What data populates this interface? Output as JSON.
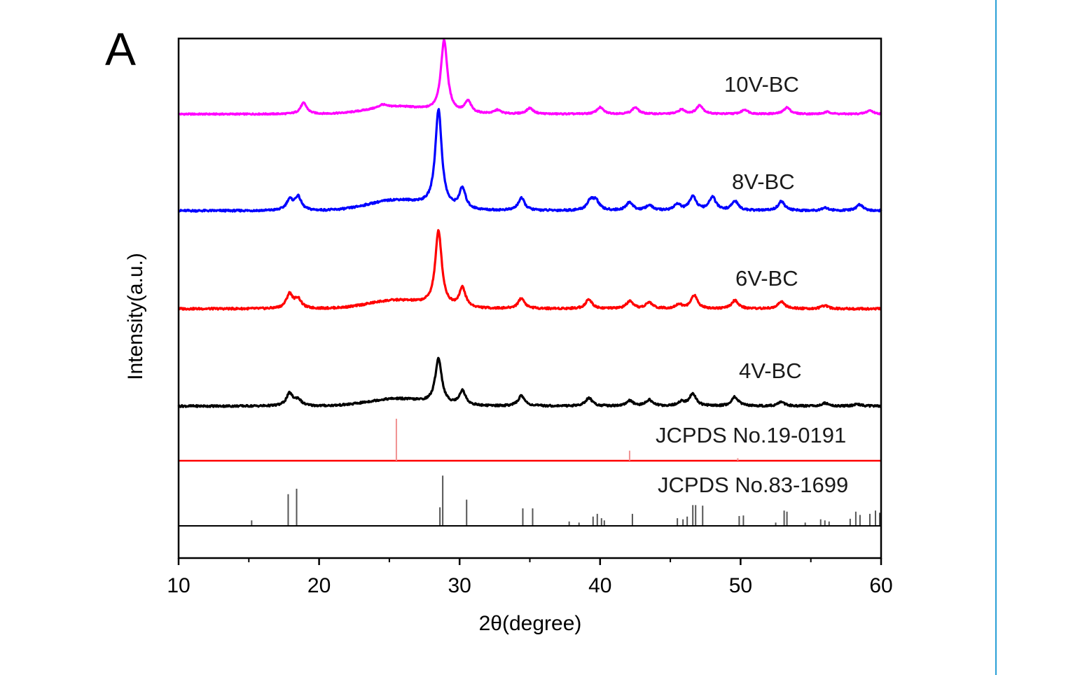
{
  "chart_data": {
    "type": "line",
    "panel_label": "A",
    "xlabel": "2θ(degree)",
    "ylabel": "Intensity(a.u.)",
    "xlim": [
      10,
      60
    ],
    "x_ticks": [
      10,
      20,
      30,
      40,
      50,
      60
    ],
    "y_ticks_shown": false,
    "grid": false,
    "legend": "none (series labelled inline on the right)",
    "series": [
      {
        "name": "10V-BC",
        "color": "#ff00ff",
        "baseline": 0.13,
        "hump": {
          "center": 25.5,
          "width": 2.8,
          "height": 0.1
        },
        "peaks": [
          [
            18.9,
            0.15
          ],
          [
            24.5,
            0.04
          ],
          [
            28.9,
            0.98
          ],
          [
            30.6,
            0.16
          ],
          [
            32.7,
            0.05
          ],
          [
            35.0,
            0.08
          ],
          [
            40.0,
            0.09
          ],
          [
            42.5,
            0.09
          ],
          [
            45.8,
            0.06
          ],
          [
            47.1,
            0.12
          ],
          [
            50.3,
            0.06
          ],
          [
            53.3,
            0.09
          ],
          [
            56.2,
            0.03
          ],
          [
            59.2,
            0.05
          ]
        ]
      },
      {
        "name": "8V-BC",
        "color": "#0000ff",
        "baseline": 0.13,
        "hump": {
          "center": 25.5,
          "width": 2.8,
          "height": 0.1
        },
        "peaks": [
          [
            17.9,
            0.1
          ],
          [
            18.5,
            0.13
          ],
          [
            28.5,
            0.95
          ],
          [
            30.2,
            0.2
          ],
          [
            34.4,
            0.12
          ],
          [
            39.3,
            0.09
          ],
          [
            39.7,
            0.09
          ],
          [
            42.1,
            0.08
          ],
          [
            43.5,
            0.05
          ],
          [
            45.5,
            0.06
          ],
          [
            46.6,
            0.14
          ],
          [
            48.0,
            0.13
          ],
          [
            49.6,
            0.09
          ],
          [
            52.9,
            0.09
          ],
          [
            56.0,
            0.03
          ],
          [
            58.5,
            0.06
          ]
        ]
      },
      {
        "name": "6V-BC",
        "color": "#ff0000",
        "baseline": 0.13,
        "hump": {
          "center": 25.5,
          "width": 2.8,
          "height": 0.08
        },
        "peaks": [
          [
            17.9,
            0.14
          ],
          [
            18.5,
            0.09
          ],
          [
            28.5,
            0.73
          ],
          [
            30.2,
            0.19
          ],
          [
            34.4,
            0.1
          ],
          [
            39.2,
            0.09
          ],
          [
            42.1,
            0.07
          ],
          [
            43.5,
            0.06
          ],
          [
            45.6,
            0.04
          ],
          [
            46.7,
            0.13
          ],
          [
            49.6,
            0.08
          ],
          [
            52.9,
            0.07
          ],
          [
            56.0,
            0.03
          ]
        ]
      },
      {
        "name": "4V-BC",
        "color": "#000000",
        "baseline": 0.13,
        "hump": {
          "center": 25.5,
          "width": 2.8,
          "height": 0.07
        },
        "peaks": [
          [
            17.9,
            0.12
          ],
          [
            18.5,
            0.06
          ],
          [
            28.5,
            0.44
          ],
          [
            30.2,
            0.14
          ],
          [
            34.4,
            0.1
          ],
          [
            39.2,
            0.08
          ],
          [
            42.1,
            0.05
          ],
          [
            43.5,
            0.06
          ],
          [
            45.8,
            0.04
          ],
          [
            46.6,
            0.12
          ],
          [
            49.6,
            0.09
          ],
          [
            52.9,
            0.04
          ],
          [
            56.0,
            0.03
          ],
          [
            58.3,
            0.02
          ]
        ]
      }
    ],
    "reference_patterns": [
      {
        "name": "JCPDS No.19-0191",
        "color": "#ff0000",
        "line_color": "#f09090",
        "lines": [
          [
            25.5,
            1.0
          ],
          [
            42.1,
            0.24
          ],
          [
            49.8,
            0.06
          ]
        ]
      },
      {
        "name": "JCPDS No.83-1699",
        "color": "#222222",
        "line_color": "#555555",
        "lines": [
          [
            15.2,
            0.1
          ],
          [
            17.8,
            0.58
          ],
          [
            18.4,
            0.68
          ],
          [
            28.6,
            0.34
          ],
          [
            28.8,
            0.92
          ],
          [
            30.5,
            0.48
          ],
          [
            34.5,
            0.32
          ],
          [
            35.2,
            0.32
          ],
          [
            37.8,
            0.08
          ],
          [
            38.5,
            0.06
          ],
          [
            39.5,
            0.17
          ],
          [
            39.8,
            0.22
          ],
          [
            40.1,
            0.14
          ],
          [
            40.3,
            0.1
          ],
          [
            42.3,
            0.22
          ],
          [
            45.5,
            0.14
          ],
          [
            45.9,
            0.12
          ],
          [
            46.2,
            0.17
          ],
          [
            46.6,
            0.38
          ],
          [
            46.8,
            0.38
          ],
          [
            47.3,
            0.37
          ],
          [
            49.9,
            0.18
          ],
          [
            50.2,
            0.19
          ],
          [
            52.5,
            0.06
          ],
          [
            53.1,
            0.28
          ],
          [
            53.3,
            0.26
          ],
          [
            54.6,
            0.06
          ],
          [
            55.7,
            0.12
          ],
          [
            56.0,
            0.1
          ],
          [
            56.3,
            0.08
          ],
          [
            57.8,
            0.13
          ],
          [
            58.2,
            0.26
          ],
          [
            58.5,
            0.2
          ],
          [
            59.2,
            0.22
          ],
          [
            59.6,
            0.28
          ],
          [
            59.9,
            0.24
          ]
        ]
      }
    ]
  },
  "colors": {
    "frame": "#000000",
    "divider": "#2a9fd6",
    "background": "#ffffff"
  }
}
